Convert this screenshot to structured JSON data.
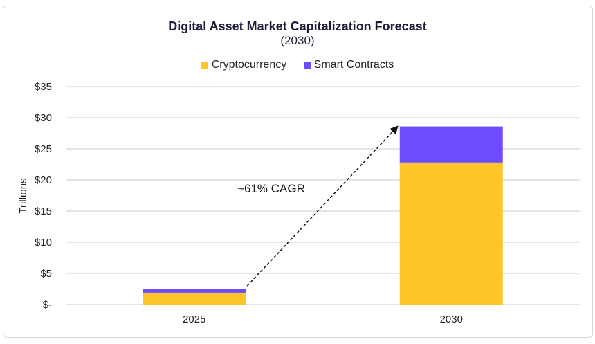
{
  "chart_data": {
    "type": "bar",
    "stacked": true,
    "title": "Digital Asset Market Capitalization Forecast",
    "subtitle": "(2030)",
    "ylabel": "Trillions",
    "xlabel": "",
    "ylim": [
      0,
      35
    ],
    "yticks": [
      0,
      5,
      10,
      15,
      20,
      25,
      30,
      35
    ],
    "ytick_labels": [
      "$-",
      "$5",
      "$10",
      "$15",
      "$20",
      "$25",
      "$30",
      "$35"
    ],
    "categories": [
      "2025",
      "2030"
    ],
    "series": [
      {
        "name": "Cryptocurrency",
        "values": [
          1.9,
          22.8
        ],
        "color": "#FFC629"
      },
      {
        "name": "Smart Contracts",
        "values": [
          0.65,
          5.8
        ],
        "color": "#6E4BFF"
      }
    ],
    "grid": true,
    "legend": "top",
    "annotation": {
      "text": "~61% CAGR",
      "arrow": "dashed from 2025 bar top to 2030 bar top"
    }
  }
}
